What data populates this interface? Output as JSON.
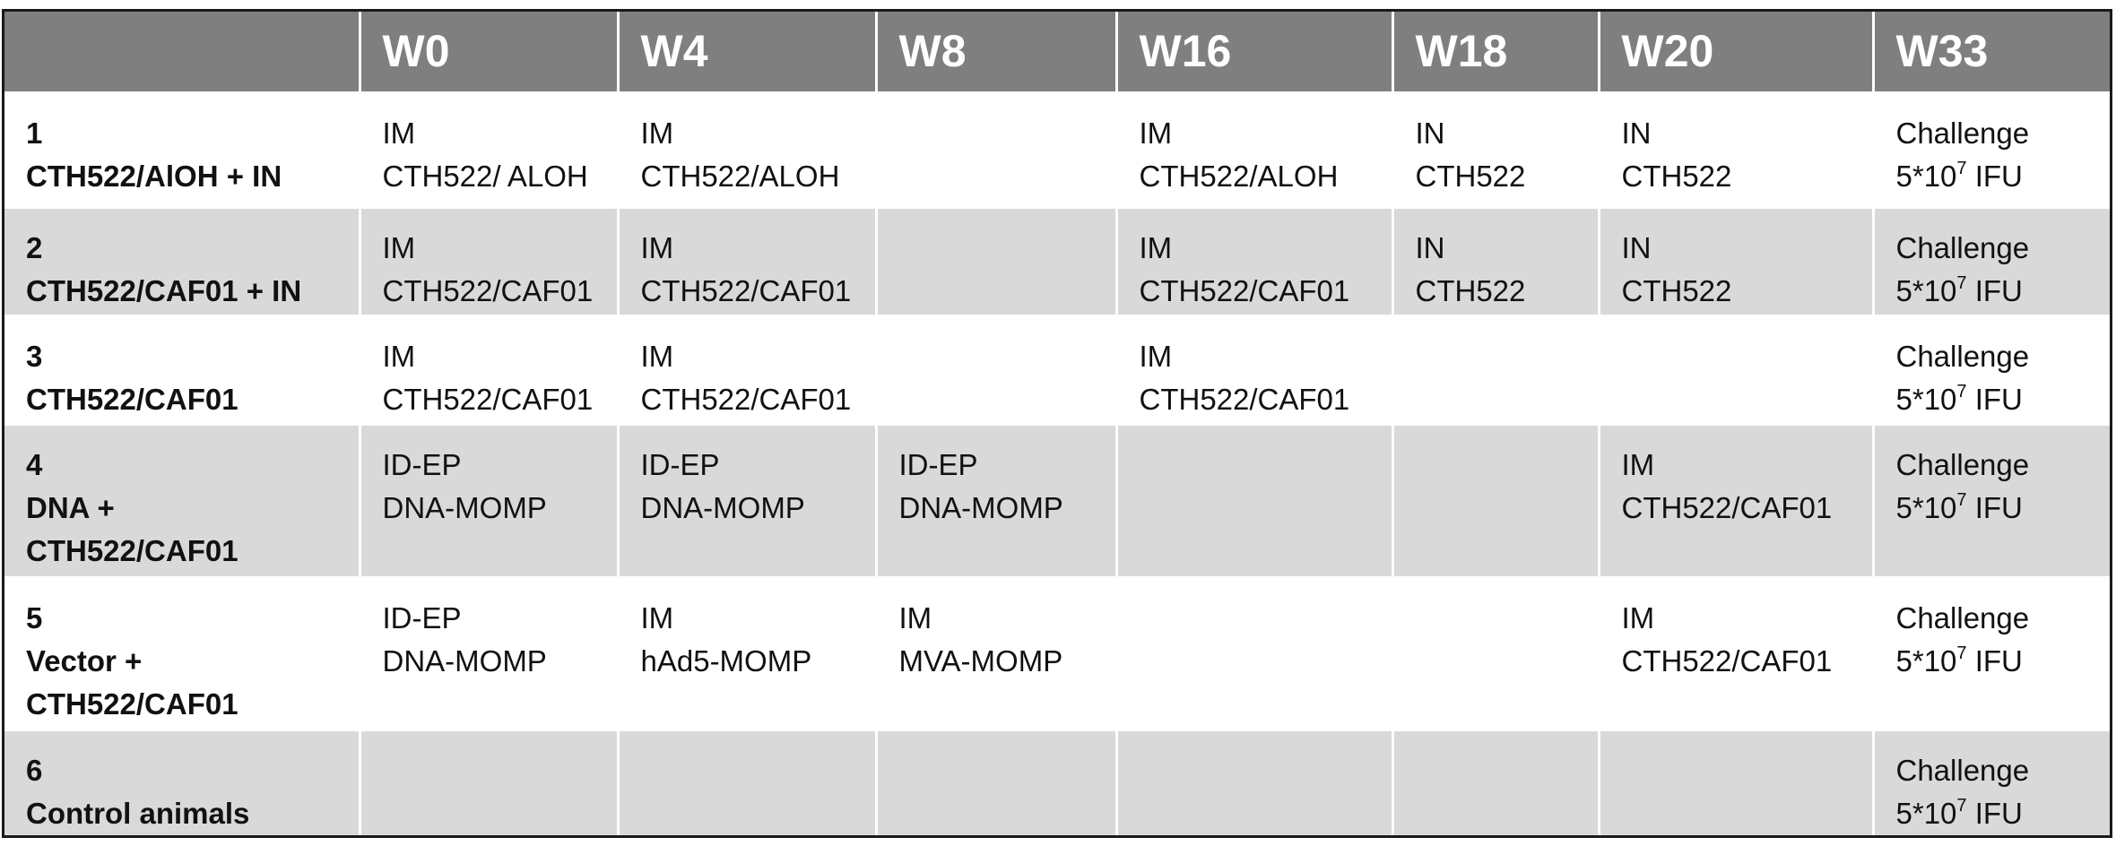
{
  "header": {
    "corner": "",
    "weeks": [
      "W0",
      "W4",
      "W8",
      "W16",
      "W18",
      "W20",
      "W33"
    ]
  },
  "rows": [
    {
      "number": "1",
      "name": "CTH522/AlOH + IN",
      "cells": [
        [
          "IM",
          "CTH522/ ALOH"
        ],
        [
          "IM",
          "CTH522/ALOH"
        ],
        [],
        [
          "IM",
          "CTH522/ALOH"
        ],
        [
          "IN",
          "CTH522"
        ],
        [
          "IN",
          "CTH522"
        ],
        [
          "Challenge",
          "5*10",
          "7",
          " IFU"
        ]
      ]
    },
    {
      "number": "2",
      "name": "CTH522/CAF01 + IN",
      "cells": [
        [
          "IM",
          "CTH522/CAF01"
        ],
        [
          "IM",
          "CTH522/CAF01"
        ],
        [],
        [
          "IM",
          "CTH522/CAF01"
        ],
        [
          "IN",
          "CTH522"
        ],
        [
          "IN",
          "CTH522"
        ],
        [
          "Challenge",
          "5*10",
          "7",
          " IFU"
        ]
      ]
    },
    {
      "number": "3",
      "name": "CTH522/CAF01",
      "cells": [
        [
          "IM",
          "CTH522/CAF01"
        ],
        [
          "IM",
          "CTH522/CAF01"
        ],
        [],
        [
          "IM",
          "CTH522/CAF01"
        ],
        [],
        [],
        [
          "Challenge",
          "5*10",
          "7",
          " IFU"
        ]
      ]
    },
    {
      "number": "4",
      "name_lines": [
        "DNA +",
        "CTH522/CAF01"
      ],
      "cells": [
        [
          "ID-EP",
          "DNA-MOMP"
        ],
        [
          "ID-EP",
          "DNA-MOMP"
        ],
        [
          "ID-EP",
          "DNA-MOMP"
        ],
        [],
        [],
        [
          "IM",
          "CTH522/CAF01"
        ],
        [
          "Challenge",
          "5*10",
          "7",
          " IFU"
        ]
      ]
    },
    {
      "number": "5",
      "name_lines": [
        "Vector +",
        "CTH522/CAF01"
      ],
      "cells": [
        [
          "ID-EP",
          "DNA-MOMP"
        ],
        [
          "IM",
          "hAd5-MOMP"
        ],
        [
          "IM",
          "MVA-MOMP"
        ],
        [],
        [],
        [
          "IM",
          "CTH522/CAF01"
        ],
        [
          "Challenge",
          "5*10",
          "7",
          " IFU"
        ]
      ]
    },
    {
      "number": "6",
      "name": "Control animals",
      "cells": [
        [],
        [],
        [],
        [],
        [],
        [],
        [
          "Challenge",
          "5*10",
          "7",
          " IFU"
        ]
      ]
    }
  ],
  "colors": {
    "header_bg": "#7f7f7f",
    "header_text": "#ffffff",
    "row_odd_bg": "#ffffff",
    "row_even_bg": "#d9d9d9",
    "text": "#111111"
  }
}
